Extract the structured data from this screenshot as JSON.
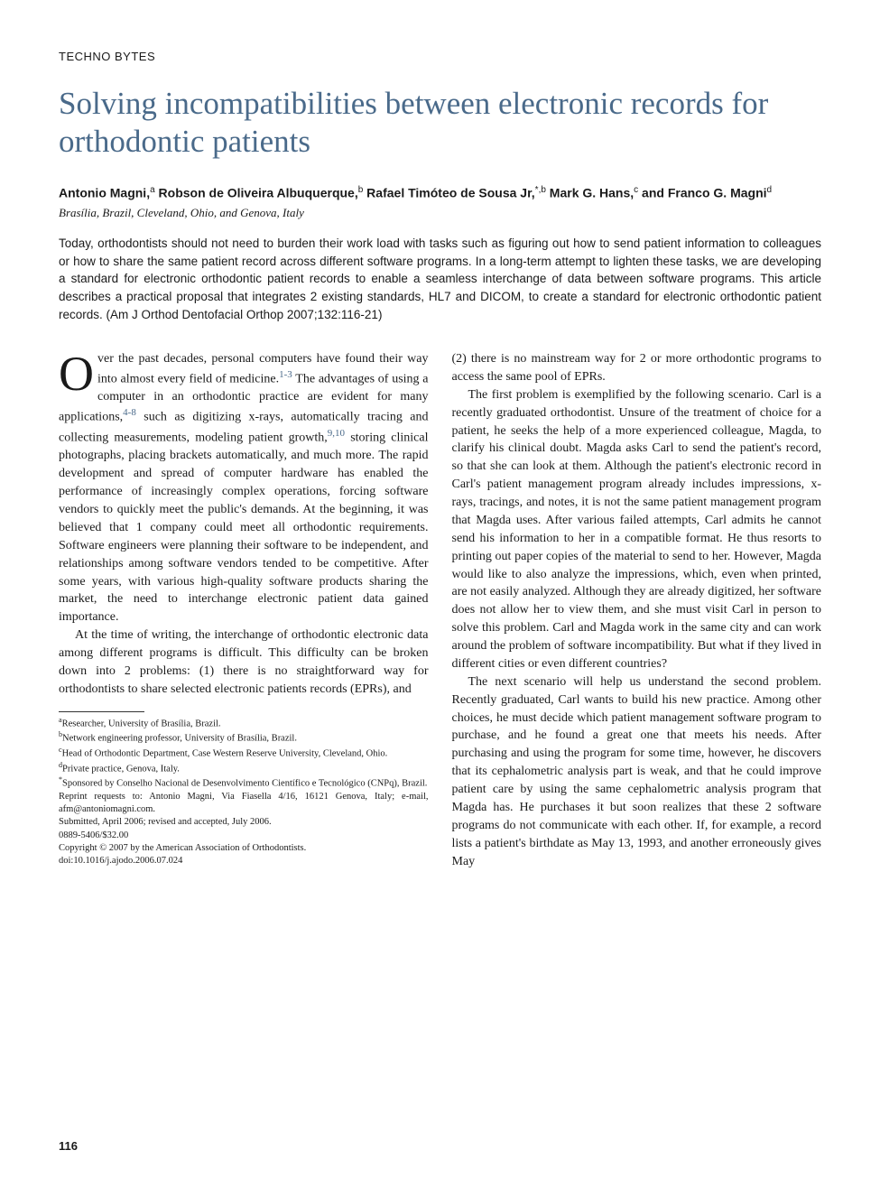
{
  "section_label": "TECHNO BYTES",
  "title": "Solving incompatibilities between electronic records for orthodontic patients",
  "authors_html": "Antonio Magni,<sup>a</sup> Robson de Oliveira Albuquerque,<sup>b</sup> Rafael Timóteo de Sousa Jr,<sup>*,b</sup> Mark G. Hans,<sup>c</sup> and Franco G. Magni<sup>d</sup>",
  "locations": "Brasília, Brazil, Cleveland, Ohio, and Genova, Italy",
  "abstract": "Today, orthodontists should not need to burden their work load with tasks such as figuring out how to send patient information to colleagues or how to share the same patient record across different software programs. In a long-term attempt to lighten these tasks, we are developing a standard for electronic orthodontic patient records to enable a seamless interchange of data between software programs. This article describes a practical proposal that integrates 2 existing standards, HL7 and DICOM, to create a standard for electronic orthodontic patient records. (Am J Orthod Dentofacial Orthop 2007;132:116-21)",
  "col1": {
    "p1": "ver the past decades, personal computers have found their way into almost every field of medicine.",
    "p1b": " The advantages of using a computer in an orthodontic practice are evident for many applications,",
    "p1c": " such as digitizing x-rays, automatically tracing and collecting measurements, modeling patient growth,",
    "p1d": " storing clinical photographs, placing brackets automatically, and much more. The rapid development and spread of computer hardware has enabled the performance of increasingly complex operations, forcing software vendors to quickly meet the public's demands. At the beginning, it was believed that 1 company could meet all orthodontic requirements. Software engineers were planning their software to be independent, and relationships among software vendors tended to be competitive. After some years, with various high-quality software products sharing the market, the need to interchange electronic patient data gained importance.",
    "ref1": "1-3",
    "ref2": "4-8",
    "ref3": "9,10",
    "p2": "At the time of writing, the interchange of orthodontic electronic data among different programs is difficult. This difficulty can be broken down into 2 problems: (1) there is no straightforward way for orthodontists to share selected electronic patients records (EPRs), and"
  },
  "col2": {
    "p1": "(2) there is no mainstream way for 2 or more orthodontic programs to access the same pool of EPRs.",
    "p2": "The first problem is exemplified by the following scenario. Carl is a recently graduated orthodontist. Unsure of the treatment of choice for a patient, he seeks the help of a more experienced colleague, Magda, to clarify his clinical doubt. Magda asks Carl to send the patient's record, so that she can look at them. Although the patient's electronic record in Carl's patient management program already includes impressions, x-rays, tracings, and notes, it is not the same patient management program that Magda uses. After various failed attempts, Carl admits he cannot send his information to her in a compatible format. He thus resorts to printing out paper copies of the material to send to her. However, Magda would like to also analyze the impressions, which, even when printed, are not easily analyzed. Although they are already digitized, her software does not allow her to view them, and she must visit Carl in person to solve this problem. Carl and Magda work in the same city and can work around the problem of software incompatibility. But what if they lived in different cities or even different countries?",
    "p3": "The next scenario will help us understand the second problem. Recently graduated, Carl wants to build his new practice. Among other choices, he must decide which patient management software program to purchase, and he found a great one that meets his needs. After purchasing and using the program for some time, however, he discovers that its cephalometric analysis part is weak, and that he could improve patient care by using the same cephalometric analysis program that Magda has. He purchases it but soon realizes that these 2 software programs do not communicate with each other. If, for example, a record lists a patient's birthdate as May 13, 1993, and another erroneously gives May"
  },
  "footnotes": {
    "a": "Researcher, University of Brasília, Brazil.",
    "b": "Network engineering professor, University of Brasília, Brazil.",
    "c": "Head of Orthodontic Department, Case Western Reserve University, Cleveland, Ohio.",
    "d": "Private practice, Genova, Italy.",
    "star": "Sponsored by Conselho Nacional de Desenvolvimento Científico e Tecnológico (CNPq), Brazil.",
    "reprint": "Reprint requests to: Antonio Magni, Via Fiasella 4/16, 16121 Genova, Italy; e-mail, afm@antoniomagni.com.",
    "submitted": "Submitted, April 2006; revised and accepted, July 2006.",
    "issn": "0889-5406/$32.00",
    "copyright": "Copyright © 2007 by the American Association of Orthodontists.",
    "doi": "doi:10.1016/j.ajodo.2006.07.024"
  },
  "page_number": "116",
  "colors": {
    "title": "#4a6a8a",
    "text": "#1a1a1a",
    "link": "#4a6a8a",
    "background": "#ffffff"
  },
  "fonts": {
    "serif": "Georgia, 'Times New Roman', serif",
    "sans": "Arial, Helvetica, sans-serif",
    "title_size": 35,
    "body_size": 14,
    "abstract_size": 13.5,
    "footnote_size": 10.5
  }
}
